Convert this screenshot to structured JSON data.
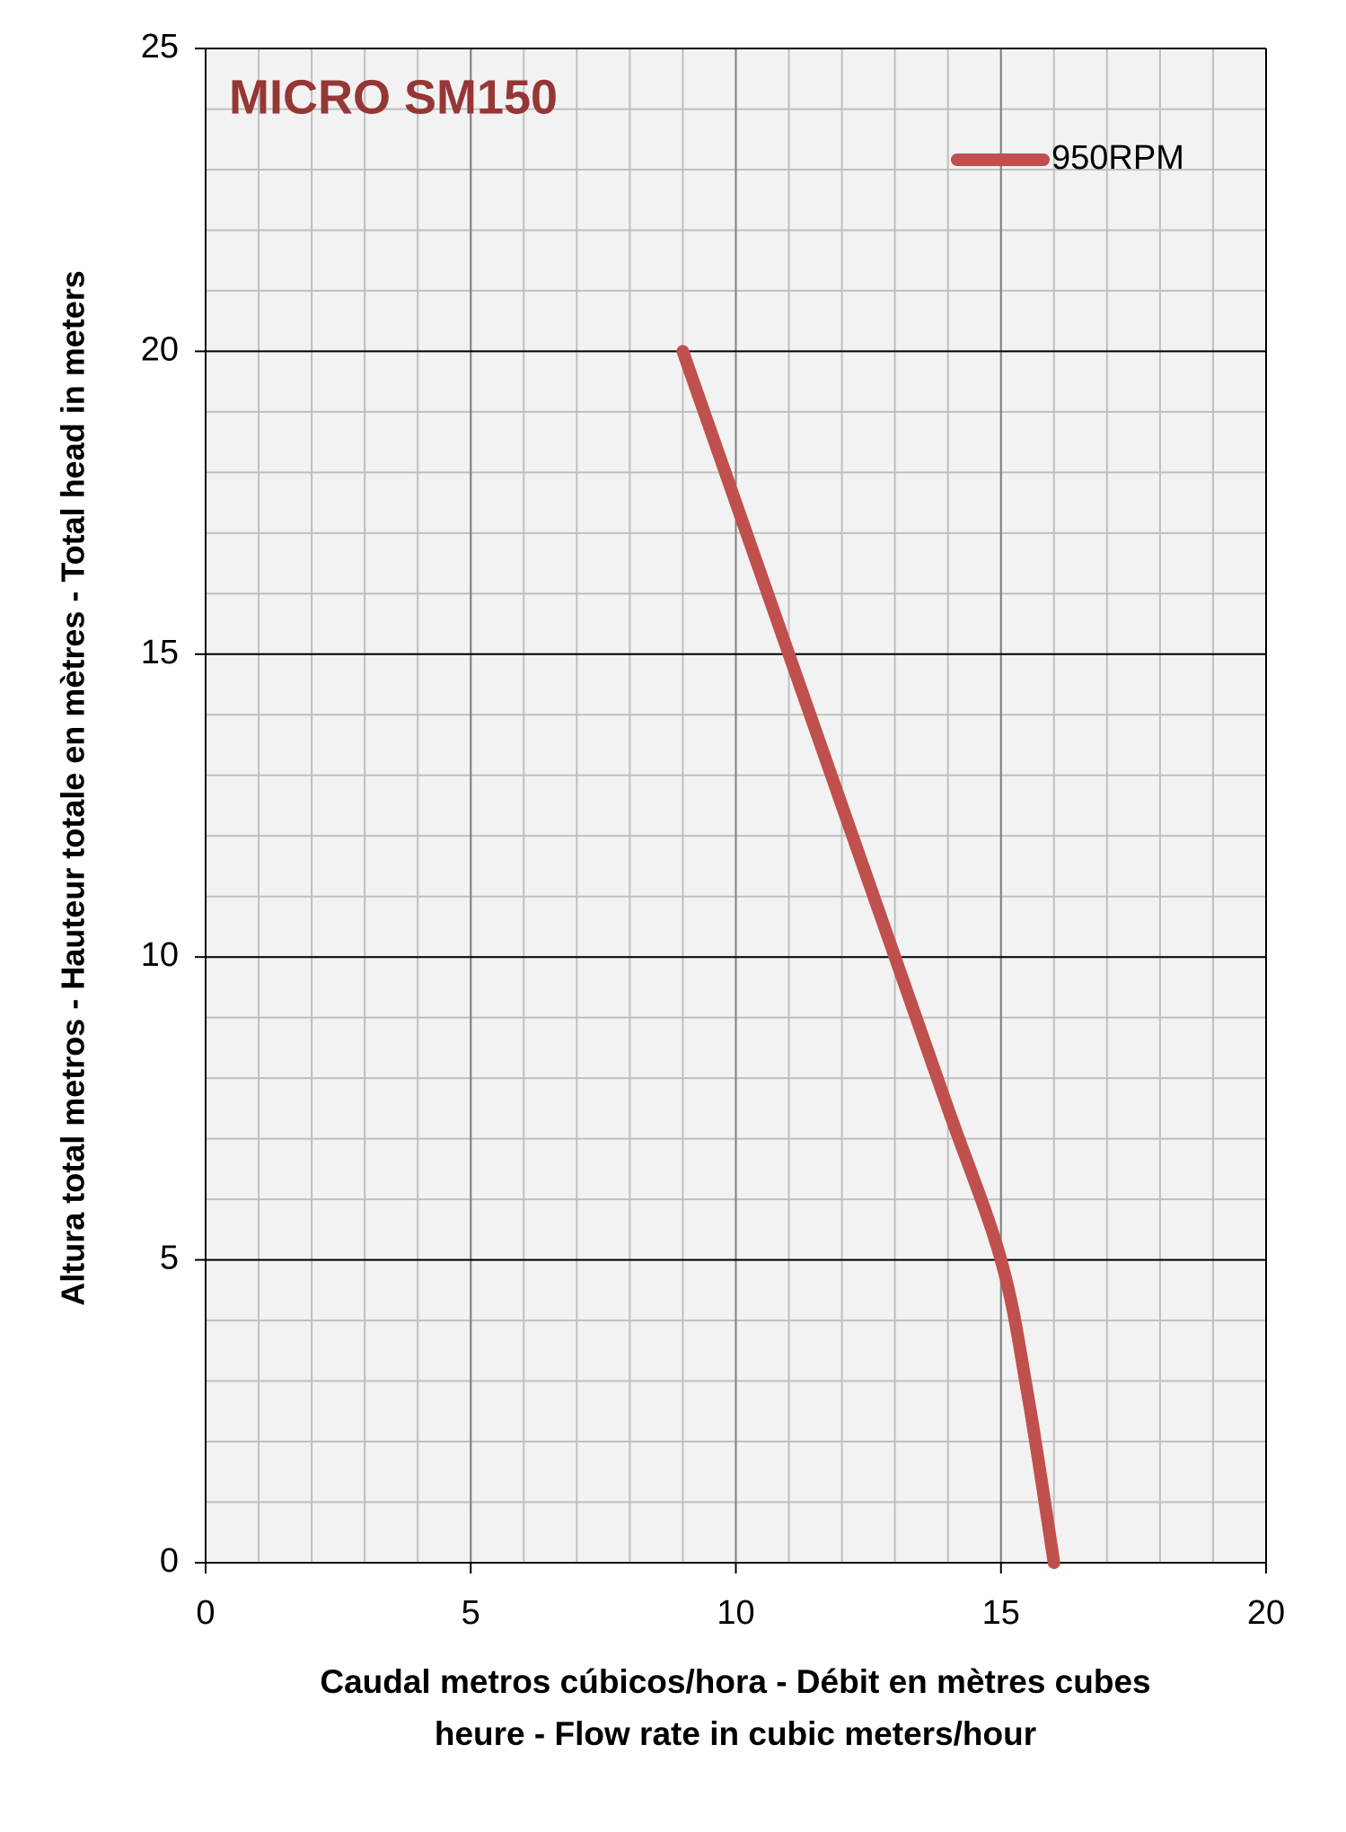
{
  "chart_data": {
    "type": "line",
    "title": "MICRO SM150",
    "x_label": "Caudal metros cúbicos/hora - Débit en mètres cubes heure - Flow rate in cubic meters/hour",
    "y_label": "Altura total metros - Hauteur totale en mètres - Total head in meters",
    "x": [
      9,
      10,
      11,
      12,
      13,
      14,
      15,
      15.5,
      16
    ],
    "series": [
      {
        "name": "950RPM",
        "color": "#c0504d",
        "values": [
          20,
          17.5,
          15,
          12.5,
          10,
          7.5,
          5,
          2.8,
          0
        ]
      }
    ],
    "xlim": [
      0,
      20
    ],
    "xticks": [
      0,
      5,
      10,
      15,
      20
    ],
    "ylim": [
      0,
      25
    ],
    "yticks": [
      0,
      5,
      10,
      15,
      20,
      25
    ],
    "grid": true,
    "legend": "upper right",
    "title_color": "#953735"
  }
}
